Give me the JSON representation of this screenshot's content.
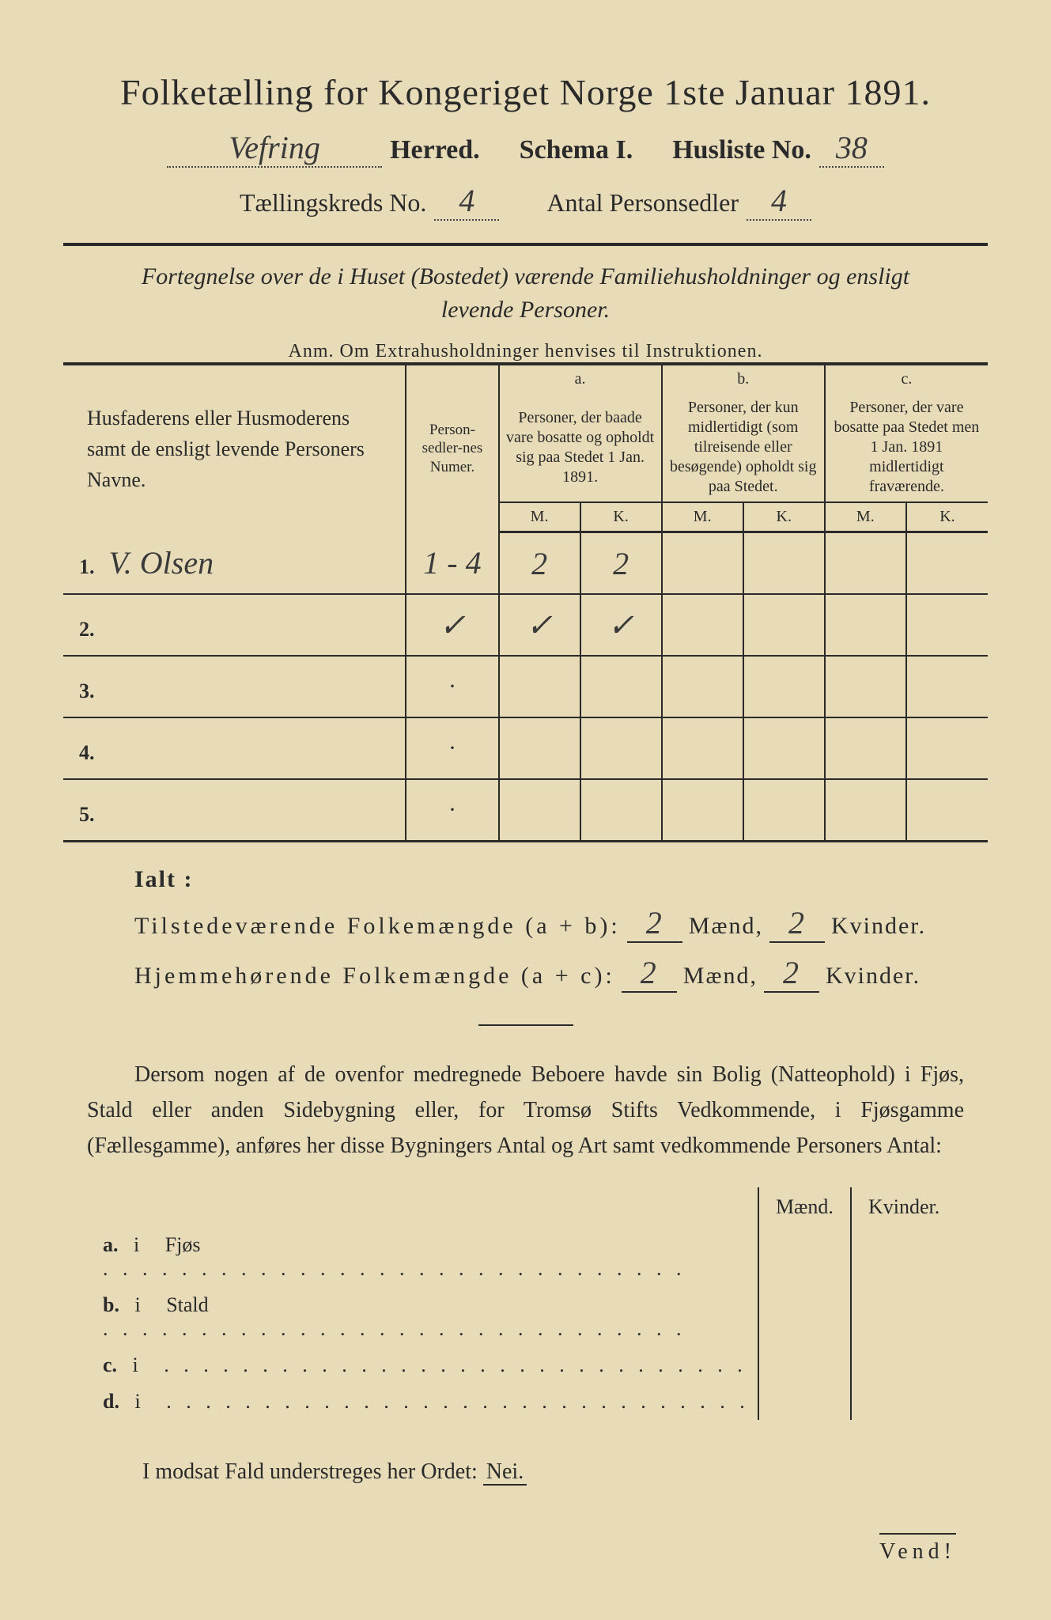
{
  "header": {
    "title": "Folketælling for Kongeriget Norge 1ste Januar 1891.",
    "herred_value": "Vefring",
    "herred_label": "Herred.",
    "schema_label": "Schema I.",
    "husliste_label": "Husliste No.",
    "husliste_value": "38",
    "kreds_label": "Tællingskreds No.",
    "kreds_value": "4",
    "antal_label": "Antal Personsedler",
    "antal_value": "4"
  },
  "fortegnelse": {
    "line1": "Fortegnelse over de i Huset (Bostedet) værende Familiehusholdninger og ensligt",
    "line2": "levende Personer.",
    "anm": "Anm.  Om Extrahusholdninger henvises til Instruktionen."
  },
  "table": {
    "col_name": "Husfaderens eller Husmoderens samt de ensligt levende Personers Navne.",
    "col_num": "Person-sedler-nes Numer.",
    "col_a_label": "a.",
    "col_a": "Personer, der baade vare bosatte og opholdt sig paa Stedet 1 Jan. 1891.",
    "col_b_label": "b.",
    "col_b": "Personer, der kun midlertidigt (som tilreisende eller besøgende) opholdt sig paa Stedet.",
    "col_c_label": "c.",
    "col_c": "Personer, der vare bosatte paa Stedet men 1 Jan. 1891 midlertidigt fraværende.",
    "m": "M.",
    "k": "K.",
    "rows": [
      {
        "n": "1.",
        "name": "V. Olsen",
        "num": "1 - 4",
        "am": "2",
        "ak": "2",
        "bm": "",
        "bk": "",
        "cm": "",
        "ck": ""
      },
      {
        "n": "2.",
        "name": "",
        "num": "✓",
        "am": "✓",
        "ak": "✓",
        "bm": "",
        "bk": "",
        "cm": "",
        "ck": ""
      },
      {
        "n": "3.",
        "name": "",
        "num": "·",
        "am": "",
        "ak": "",
        "bm": "",
        "bk": "",
        "cm": "",
        "ck": ""
      },
      {
        "n": "4.",
        "name": "",
        "num": "·",
        "am": "",
        "ak": "",
        "bm": "",
        "bk": "",
        "cm": "",
        "ck": ""
      },
      {
        "n": "5.",
        "name": "",
        "num": "·",
        "am": "",
        "ak": "",
        "bm": "",
        "bk": "",
        "cm": "",
        "ck": ""
      }
    ]
  },
  "ialt": {
    "label": "Ialt :",
    "line1_label": "Tilstedeværende Folkemængde (a + b):",
    "line1_m": "2",
    "line1_k": "2",
    "line2_label": "Hjemmehørende Folkemængde (a + c):",
    "line2_m": "2",
    "line2_k": "2",
    "maend": "Mænd,",
    "kvinder": "Kvinder."
  },
  "dersom": {
    "text": "Dersom nogen af de ovenfor medregnede Beboere havde sin Bolig (Natteophold) i Fjøs, Stald eller anden Sidebygning eller, for Tromsø Stifts Vedkommende, i Fjøsgamme (Fællesgamme), anføres her disse Bygningers Antal og Art samt vedkommende Personers Antal:"
  },
  "buildings": {
    "maend": "Mænd.",
    "kvinder": "Kvinder.",
    "rows": [
      {
        "l": "a.",
        "i": "i",
        "t": "Fjøs"
      },
      {
        "l": "b.",
        "i": "i",
        "t": "Stald"
      },
      {
        "l": "c.",
        "i": "i",
        "t": ""
      },
      {
        "l": "d.",
        "i": "i",
        "t": ""
      }
    ]
  },
  "modsat": "I modsat Fald understreges her Ordet:",
  "nei": "Nei.",
  "vend": "Vend!",
  "colors": {
    "paper": "#e8dcb8",
    "ink": "#2a2a2a",
    "frame": "#1a1a1a"
  }
}
